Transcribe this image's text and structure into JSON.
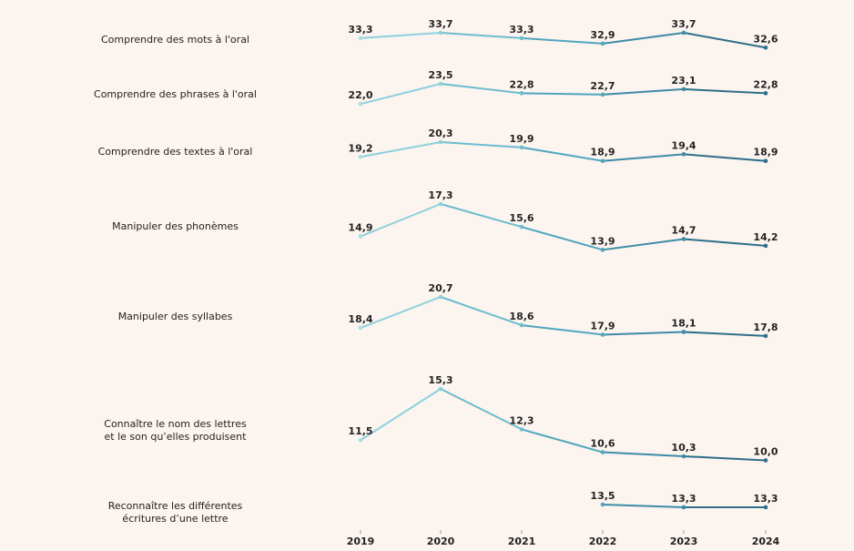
{
  "chart_data": {
    "type": "line",
    "x": [
      "2019",
      "2020",
      "2021",
      "2022",
      "2023",
      "2024"
    ],
    "point_colors": [
      "#aadde7",
      "#8ed0df",
      "#6cbcd0",
      "#4fa6be",
      "#3d8ba7",
      "#2e6e8b"
    ],
    "series": [
      {
        "name": "Comprendre des mots à l'oral",
        "values": [
          33.3,
          33.7,
          33.3,
          32.9,
          33.7,
          32.6
        ],
        "value_labels": [
          "33,3",
          "33,7",
          "33,3",
          "32,9",
          "33,7",
          "32,6"
        ]
      },
      {
        "name": "Comprendre des phrases à l'oral",
        "values": [
          22.0,
          23.5,
          22.8,
          22.7,
          23.1,
          22.8
        ],
        "value_labels": [
          "22,0",
          "23,5",
          "22,8",
          "22,7",
          "23,1",
          "22,8"
        ]
      },
      {
        "name": "Comprendre des textes à l'oral",
        "values": [
          19.2,
          20.3,
          19.9,
          18.9,
          19.4,
          18.9
        ],
        "value_labels": [
          "19,2",
          "20,3",
          "19,9",
          "18,9",
          "19,4",
          "18,9"
        ]
      },
      {
        "name": "Manipuler des phonèmes",
        "values": [
          14.9,
          17.3,
          15.6,
          13.9,
          14.7,
          14.2
        ],
        "value_labels": [
          "14,9",
          "17,3",
          "15,6",
          "13,9",
          "14,7",
          "14,2"
        ]
      },
      {
        "name": "Manipuler des syllabes",
        "values": [
          18.4,
          20.7,
          18.6,
          17.9,
          18.1,
          17.8
        ],
        "value_labels": [
          "18,4",
          "20,7",
          "18,6",
          "17,9",
          "18,1",
          "17,8"
        ]
      },
      {
        "name": "Connaître le nom des lettres\net le son qu’elles produisent",
        "values": [
          11.5,
          15.3,
          12.3,
          10.6,
          10.3,
          10.0
        ],
        "value_labels": [
          "11,5",
          "15,3",
          "12,3",
          "10,6",
          "10,3",
          "10,0"
        ]
      },
      {
        "name": "Reconnaître les différentes\nécritures d’une lettre",
        "values": [
          null,
          null,
          null,
          13.5,
          13.3,
          13.3
        ],
        "value_labels": [
          null,
          null,
          null,
          "13,5",
          "13,3",
          "13,3"
        ]
      }
    ]
  }
}
